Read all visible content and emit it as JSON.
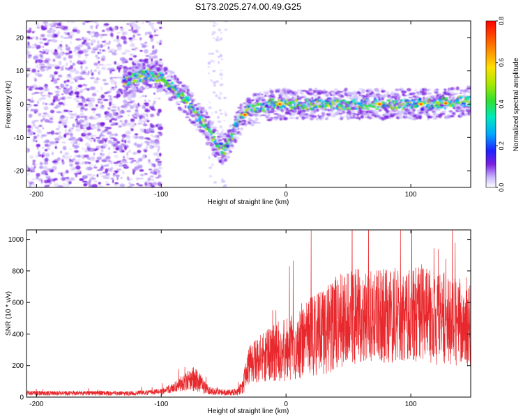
{
  "chart_data": [
    {
      "type": "heatmap",
      "title": "S173.2025.274.00.49.G25",
      "xlabel": "Height of straight line (km)",
      "ylabel": "Frequency (Hz)",
      "xlim": [
        -208,
        148
      ],
      "ylim": [
        -25,
        25
      ],
      "xticks": [
        -200,
        -100,
        0,
        100
      ],
      "yticks": [
        -20,
        -10,
        0,
        10,
        20
      ],
      "xtick_labels": [
        "-200",
        "-100",
        "0",
        "100"
      ],
      "ytick_labels": [
        "-20",
        "-10",
        "0",
        "10",
        "20"
      ],
      "colorbar": {
        "label": "Normalized spectral amplitude",
        "range": [
          0,
          0.8
        ],
        "ticks": [
          0.0,
          0.2,
          0.4,
          0.6,
          0.8
        ],
        "tick_labels": [
          "0.0",
          "0.2",
          "0.4",
          "0.6",
          "0.8"
        ]
      },
      "ridge": {
        "x": [
          -208,
          -190,
          -170,
          -150,
          -130,
          -120,
          -110,
          -100,
          -90,
          -80,
          -70,
          -60,
          -55,
          -50,
          -45,
          -40,
          -35,
          -30,
          -20,
          -10,
          0,
          20,
          40,
          60,
          80,
          100,
          120,
          148
        ],
        "y": [
          8,
          7,
          6,
          6,
          7,
          8,
          9,
          8,
          5,
          1,
          -4,
          -9,
          -12,
          -14,
          -11,
          -7,
          -4,
          -2,
          -1,
          0,
          0,
          0,
          0,
          0,
          0,
          0,
          0,
          1
        ]
      },
      "noise_band_x": [
        -208,
        -100
      ]
    },
    {
      "type": "line",
      "xlabel": "Height of straight line (km)",
      "ylabel": "SNR (10 * v/v)",
      "xlim": [
        -208,
        148
      ],
      "ylim": [
        0,
        1060
      ],
      "xticks": [
        -200,
        -100,
        0,
        100
      ],
      "yticks": [
        0,
        200,
        400,
        600,
        800,
        1000
      ],
      "xtick_labels": [
        "-200",
        "-100",
        "0",
        "100"
      ],
      "ytick_labels": [
        "0",
        "200",
        "400",
        "600",
        "800",
        "1000"
      ],
      "series": [
        {
          "name": "SNR",
          "color": "#e8282c",
          "envelope": {
            "x": [
              -208,
              -120,
              -100,
              -90,
              -80,
              -75,
              -70,
              -65,
              -60,
              -50,
              -40,
              -35,
              -30,
              -20,
              -10,
              0,
              10,
              20,
              30,
              40,
              50,
              60,
              70,
              80,
              90,
              100,
              110,
              120,
              130,
              140,
              148
            ],
            "median": [
              25,
              25,
              35,
              60,
              100,
              120,
              100,
              60,
              40,
              30,
              30,
              60,
              200,
              250,
              280,
              300,
              330,
              380,
              420,
              470,
              500,
              520,
              520,
              510,
              520,
              530,
              520,
              500,
              490,
              480,
              470
            ],
            "spread": [
              15,
              15,
              20,
              30,
              60,
              80,
              70,
              40,
              25,
              20,
              20,
              50,
              120,
              150,
              180,
              200,
              220,
              260,
              280,
              300,
              300,
              300,
              300,
              300,
              300,
              300,
              300,
              300,
              300,
              280,
              280
            ]
          }
        }
      ]
    }
  ],
  "colors": {
    "axis": "#000000",
    "line": "#e8282c",
    "noise": "#7a1fe0"
  }
}
